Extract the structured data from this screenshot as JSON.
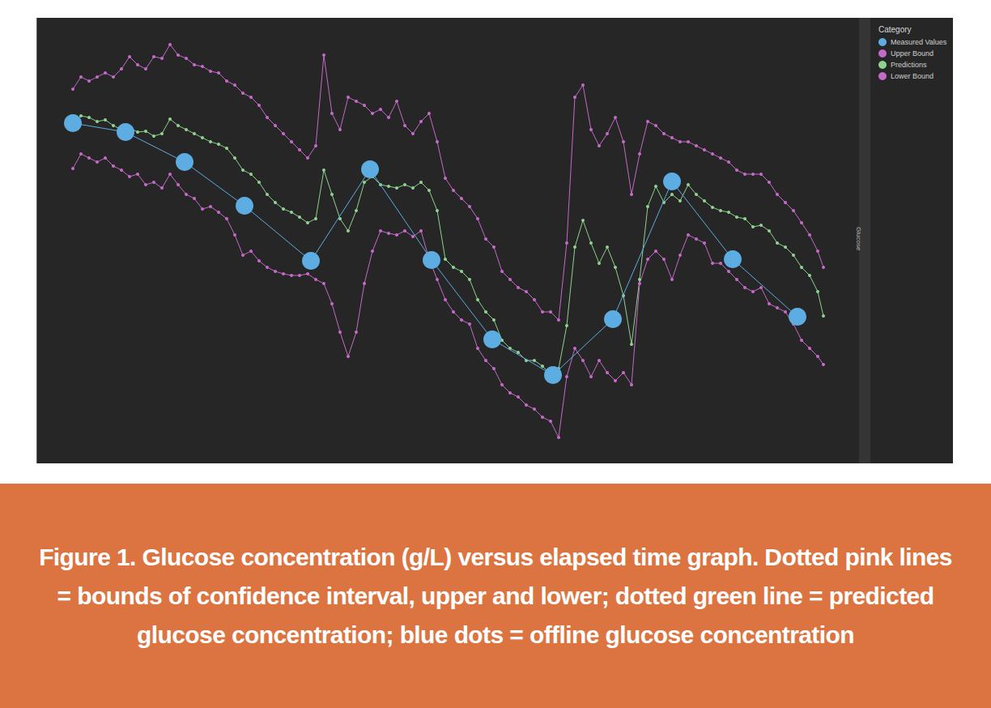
{
  "chart_data": {
    "type": "line",
    "caption": "Figure 1. Glucose concentration (g/L) versus elapsed time graph. Dotted pink lines = bounds of confidence interval, upper and lower; dotted green line = predicted glucose concentration; blue dots = offline glucose concentration",
    "ylabel": "Glucose",
    "legend_title": "Category",
    "legend": "top-right",
    "grid": false,
    "tick_labels": false,
    "xlim": [
      0,
      101.5
    ],
    "ylim": [
      0,
      5.5
    ],
    "x": [
      4.5,
      5.5,
      6.5,
      7.5,
      8.5,
      9.5,
      10.5,
      11.5,
      12.5,
      13.5,
      14.5,
      15.5,
      16.5,
      17.5,
      18.5,
      19.5,
      20.5,
      21.5,
      22.5,
      23.5,
      24.5,
      25.5,
      26.5,
      27.5,
      28.5,
      29.5,
      30.5,
      31.5,
      32.5,
      33.5,
      34.5,
      35.5,
      36.5,
      37.5,
      38.5,
      39.5,
      40.5,
      41.5,
      42.5,
      43.5,
      44.5,
      45.5,
      46.5,
      47.5,
      48.5,
      49.5,
      50.5,
      51.5,
      52.5,
      53.5,
      54.5,
      55.5,
      56.5,
      57.5,
      58.5,
      59.5,
      60.5,
      61.5,
      62.5,
      63.5,
      64.5,
      65.5,
      66.5,
      67.5,
      68.5,
      69.5,
      70.5,
      71.5,
      72.5,
      73.5,
      74.5,
      75.5,
      76.5,
      77.5,
      78.5,
      79.5,
      80.5,
      81.5,
      82.5,
      83.5,
      84.5,
      85.5,
      86.5,
      87.5,
      88.5,
      89.5,
      90.5,
      91.5,
      92.5,
      93.5,
      94.5,
      95.5,
      96.5,
      97.2
    ],
    "series": [
      {
        "name": "Measured Values",
        "color": "#5dade2",
        "marker": "circle",
        "line_style": "solid",
        "x": [
          4.5,
          11.0,
          18.3,
          25.7,
          33.9,
          41.2,
          48.8,
          56.3,
          63.8,
          71.2,
          78.5,
          86.0,
          94.0
        ],
        "values": [
          4.2,
          4.09,
          3.72,
          3.18,
          2.5,
          3.63,
          2.51,
          1.53,
          1.09,
          1.78,
          3.48,
          2.52,
          1.81
        ]
      },
      {
        "name": "Upper Bound",
        "color": "#c46ac8",
        "marker": "circle",
        "line_style": "solid",
        "values": [
          4.62,
          4.77,
          4.72,
          4.77,
          4.82,
          4.77,
          4.87,
          5.02,
          4.92,
          4.87,
          5.02,
          5.0,
          5.17,
          5.04,
          5.0,
          4.92,
          4.9,
          4.84,
          4.82,
          4.72,
          4.67,
          4.57,
          4.52,
          4.42,
          4.27,
          4.17,
          4.07,
          3.97,
          3.87,
          3.77,
          3.92,
          5.04,
          4.32,
          4.12,
          4.52,
          4.47,
          4.42,
          4.32,
          4.37,
          4.27,
          4.47,
          4.17,
          4.07,
          4.22,
          4.32,
          3.97,
          3.52,
          3.37,
          3.27,
          3.17,
          3.02,
          2.77,
          2.67,
          2.37,
          2.27,
          2.17,
          2.12,
          2.02,
          1.87,
          1.87,
          1.77,
          2.72,
          4.52,
          4.67,
          4.12,
          3.92,
          4.07,
          4.27,
          3.97,
          3.32,
          3.82,
          4.22,
          4.17,
          4.07,
          4.02,
          3.97,
          3.97,
          3.92,
          3.87,
          3.82,
          3.77,
          3.72,
          3.62,
          3.57,
          3.57,
          3.57,
          3.47,
          3.32,
          3.22,
          3.12,
          2.97,
          2.82,
          2.62,
          2.42
        ]
      },
      {
        "name": "Predictions",
        "color": "#8fd18f",
        "marker": "circle",
        "line_style": "solid",
        "values": [
          4.22,
          4.29,
          4.27,
          4.22,
          4.24,
          4.17,
          4.12,
          4.14,
          4.09,
          4.1,
          4.04,
          4.07,
          4.25,
          4.17,
          4.12,
          4.07,
          4.02,
          3.97,
          3.94,
          3.89,
          3.77,
          3.62,
          3.57,
          3.47,
          3.32,
          3.22,
          3.14,
          3.1,
          3.04,
          2.97,
          3.02,
          3.62,
          3.32,
          3.02,
          2.87,
          3.12,
          3.47,
          3.54,
          3.44,
          3.42,
          3.4,
          3.44,
          3.4,
          3.47,
          3.37,
          3.12,
          2.52,
          2.42,
          2.37,
          2.27,
          2.02,
          1.87,
          1.77,
          1.52,
          1.42,
          1.37,
          1.27,
          1.27,
          1.2,
          1.1,
          1.17,
          1.7,
          2.67,
          3.0,
          2.72,
          2.47,
          2.67,
          2.42,
          2.07,
          1.47,
          2.27,
          3.17,
          3.42,
          3.22,
          3.32,
          3.24,
          3.44,
          3.32,
          3.24,
          3.16,
          3.12,
          3.1,
          3.04,
          3.02,
          2.92,
          2.94,
          2.87,
          2.72,
          2.67,
          2.57,
          2.42,
          2.32,
          2.12,
          1.82
        ]
      },
      {
        "name": "Lower Bound",
        "color": "#c46ac8",
        "marker": "circle",
        "line_style": "solid",
        "values": [
          3.64,
          3.82,
          3.77,
          3.72,
          3.77,
          3.67,
          3.62,
          3.54,
          3.57,
          3.44,
          3.47,
          3.4,
          3.57,
          3.44,
          3.32,
          3.27,
          3.14,
          3.17,
          3.1,
          3.02,
          2.82,
          2.57,
          2.62,
          2.5,
          2.42,
          2.37,
          2.34,
          2.32,
          2.32,
          2.34,
          2.27,
          2.22,
          1.97,
          1.62,
          1.32,
          1.62,
          2.22,
          2.62,
          2.87,
          2.84,
          2.82,
          2.87,
          2.8,
          2.87,
          2.52,
          2.27,
          2.02,
          1.87,
          1.77,
          1.72,
          1.42,
          1.27,
          1.17,
          0.97,
          0.87,
          0.82,
          0.72,
          0.67,
          0.57,
          0.52,
          0.32,
          1.07,
          1.42,
          1.27,
          1.07,
          1.27,
          1.12,
          1.02,
          1.12,
          0.97,
          2.22,
          2.52,
          2.62,
          2.52,
          2.27,
          2.57,
          2.82,
          2.77,
          2.72,
          2.47,
          2.47,
          2.37,
          2.27,
          2.17,
          2.12,
          2.17,
          1.97,
          1.92,
          1.87,
          1.72,
          1.52,
          1.42,
          1.32,
          1.22
        ]
      }
    ]
  }
}
